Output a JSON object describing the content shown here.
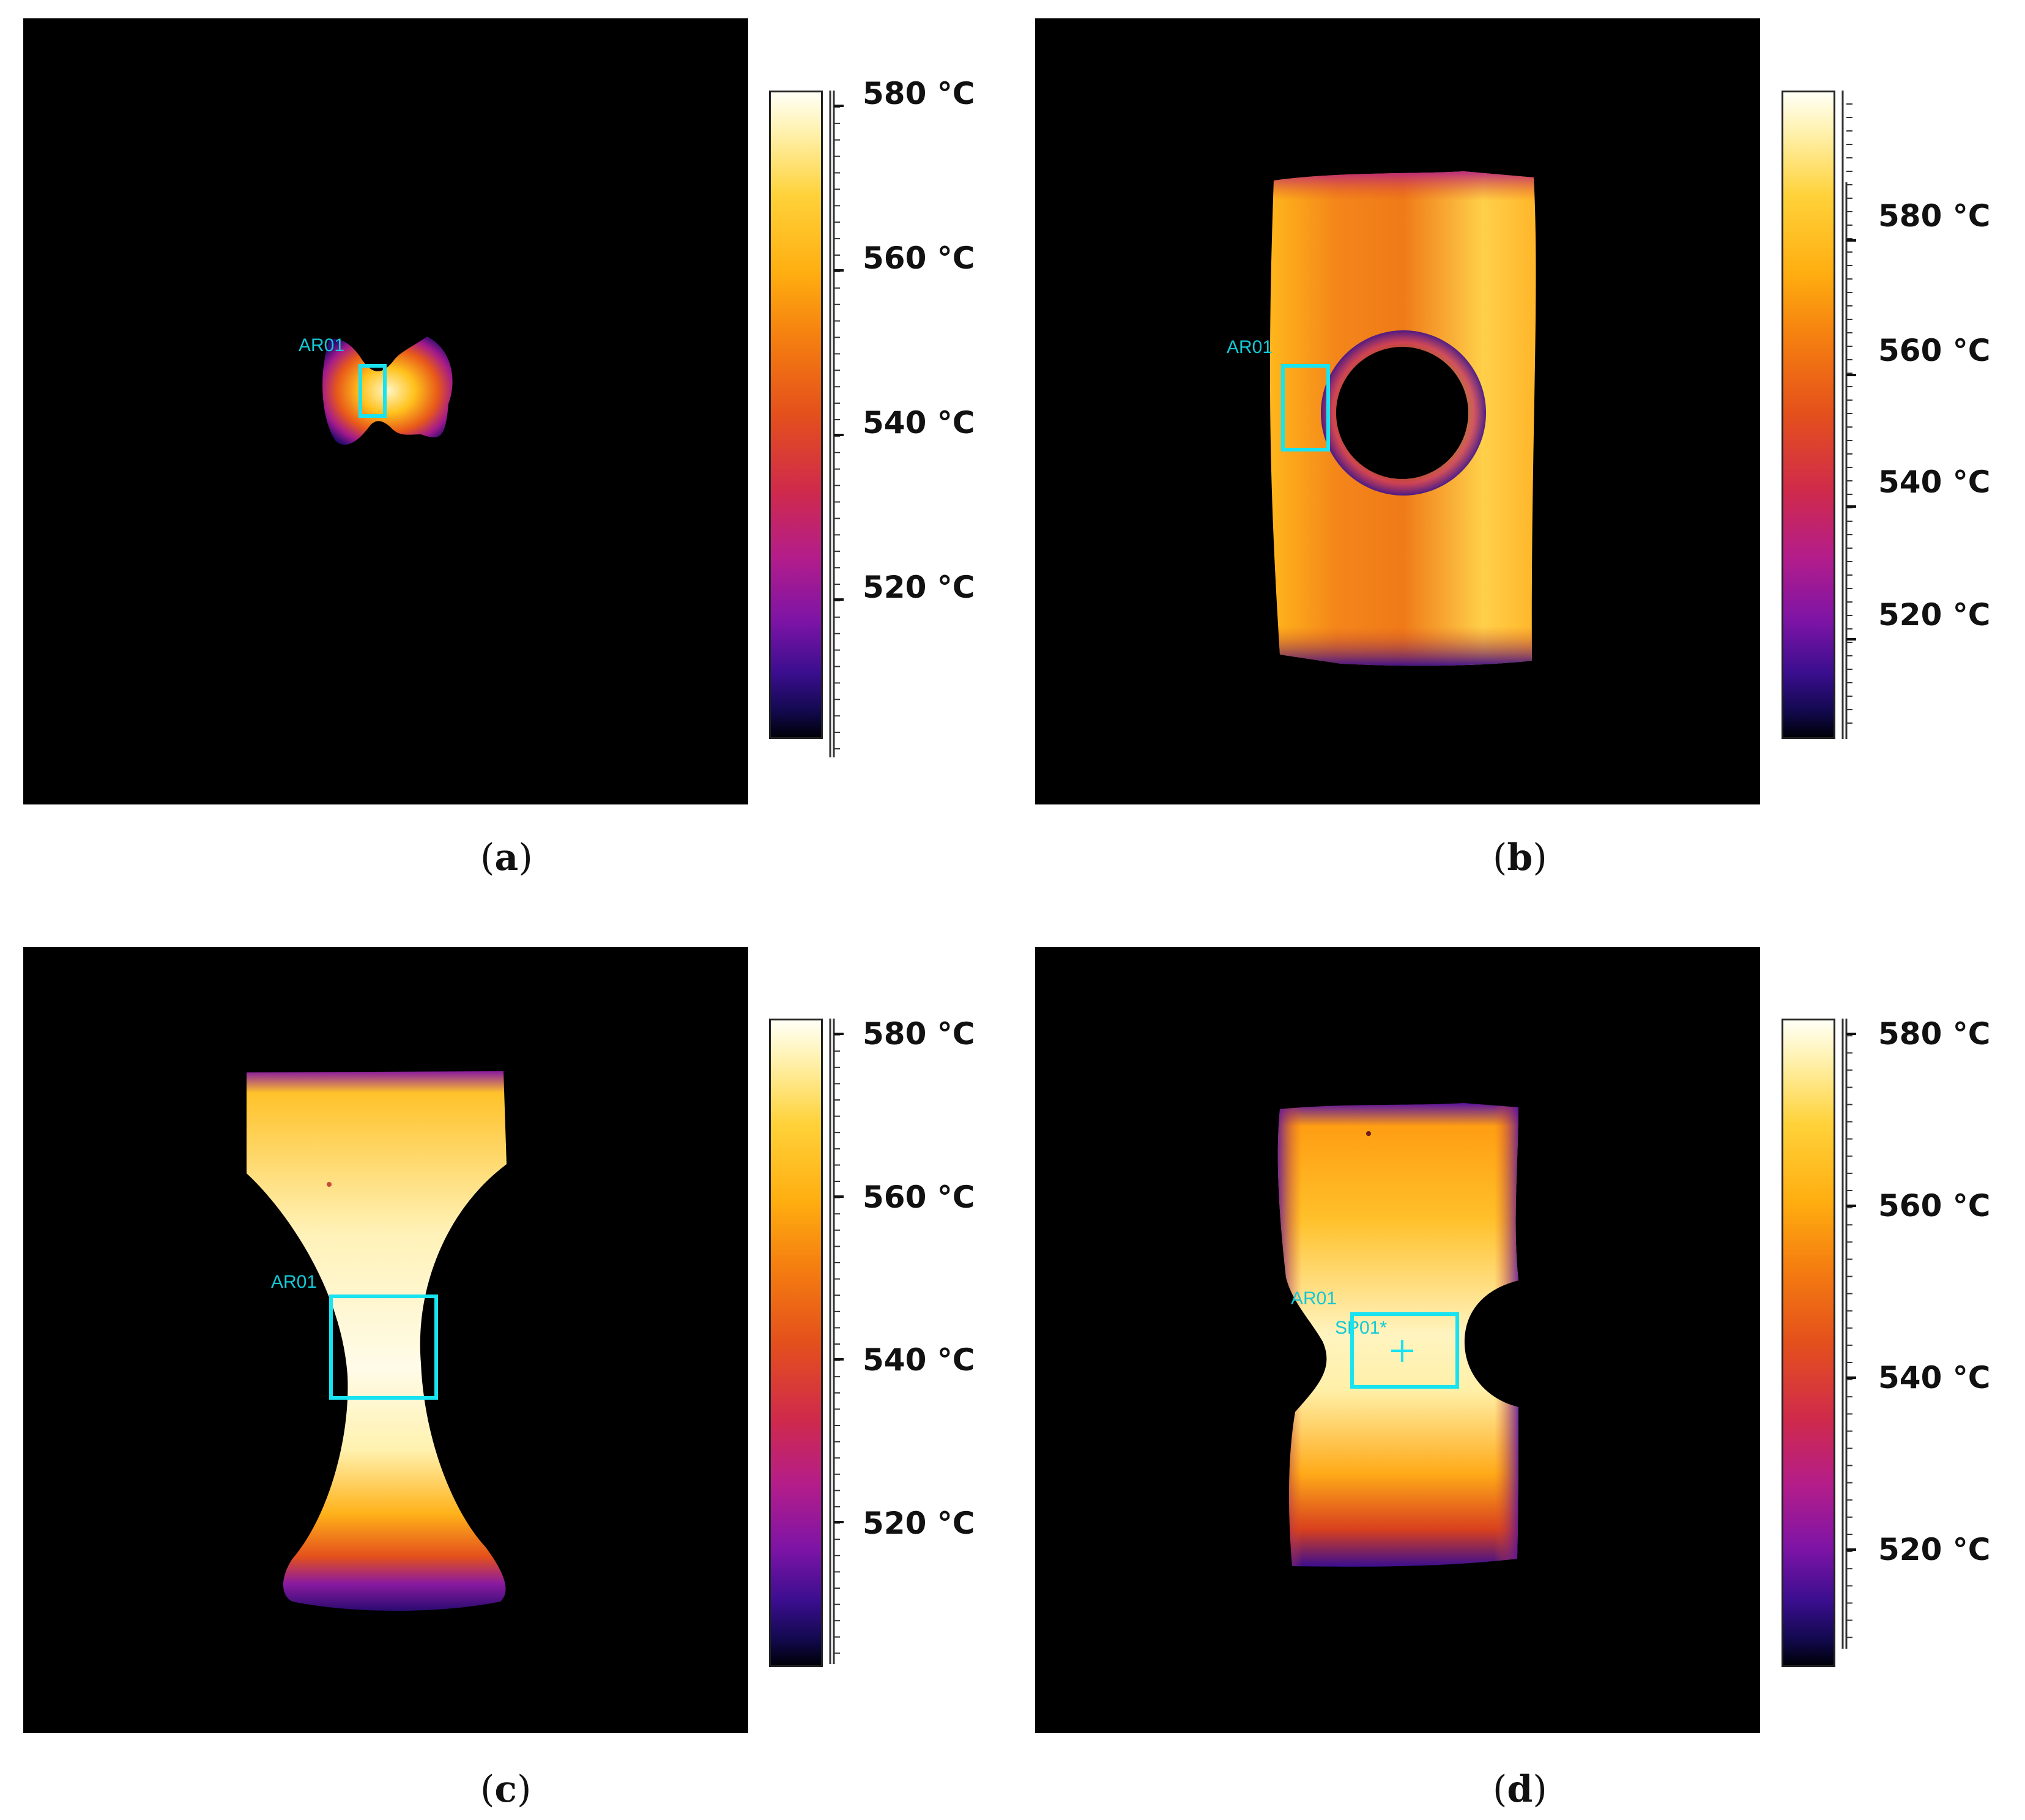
{
  "panels": [
    {
      "id": "a",
      "roi_label": "AR01",
      "spot_label": "",
      "caption_letter": "a",
      "colorbar": {
        "ticks": [
          "580 °C",
          "560 °C",
          "540 °C",
          "520 °C"
        ]
      }
    },
    {
      "id": "b",
      "roi_label": "AR01",
      "spot_label": "",
      "caption_letter": "b",
      "colorbar": {
        "ticks": [
          "580 °C",
          "560 °C",
          "540 °C",
          "520 °C"
        ]
      }
    },
    {
      "id": "c",
      "roi_label": "AR01",
      "spot_label": "",
      "caption_letter": "c",
      "colorbar": {
        "ticks": [
          "580 °C",
          "560 °C",
          "540 °C",
          "520 °C"
        ]
      }
    },
    {
      "id": "d",
      "roi_label": "AR01",
      "spot_label": "SP01*",
      "caption_letter": "d",
      "colorbar": {
        "ticks": [
          "580 °C",
          "560 °C",
          "540 °C",
          "520 °C"
        ]
      }
    }
  ],
  "colors": {
    "roi": "#19e3f0",
    "background": "#000000",
    "palette": [
      "#fffff6",
      "#ffd23a",
      "#f57f10",
      "#e4501c",
      "#b41d8a",
      "#3b0e8f",
      "#000008"
    ]
  }
}
